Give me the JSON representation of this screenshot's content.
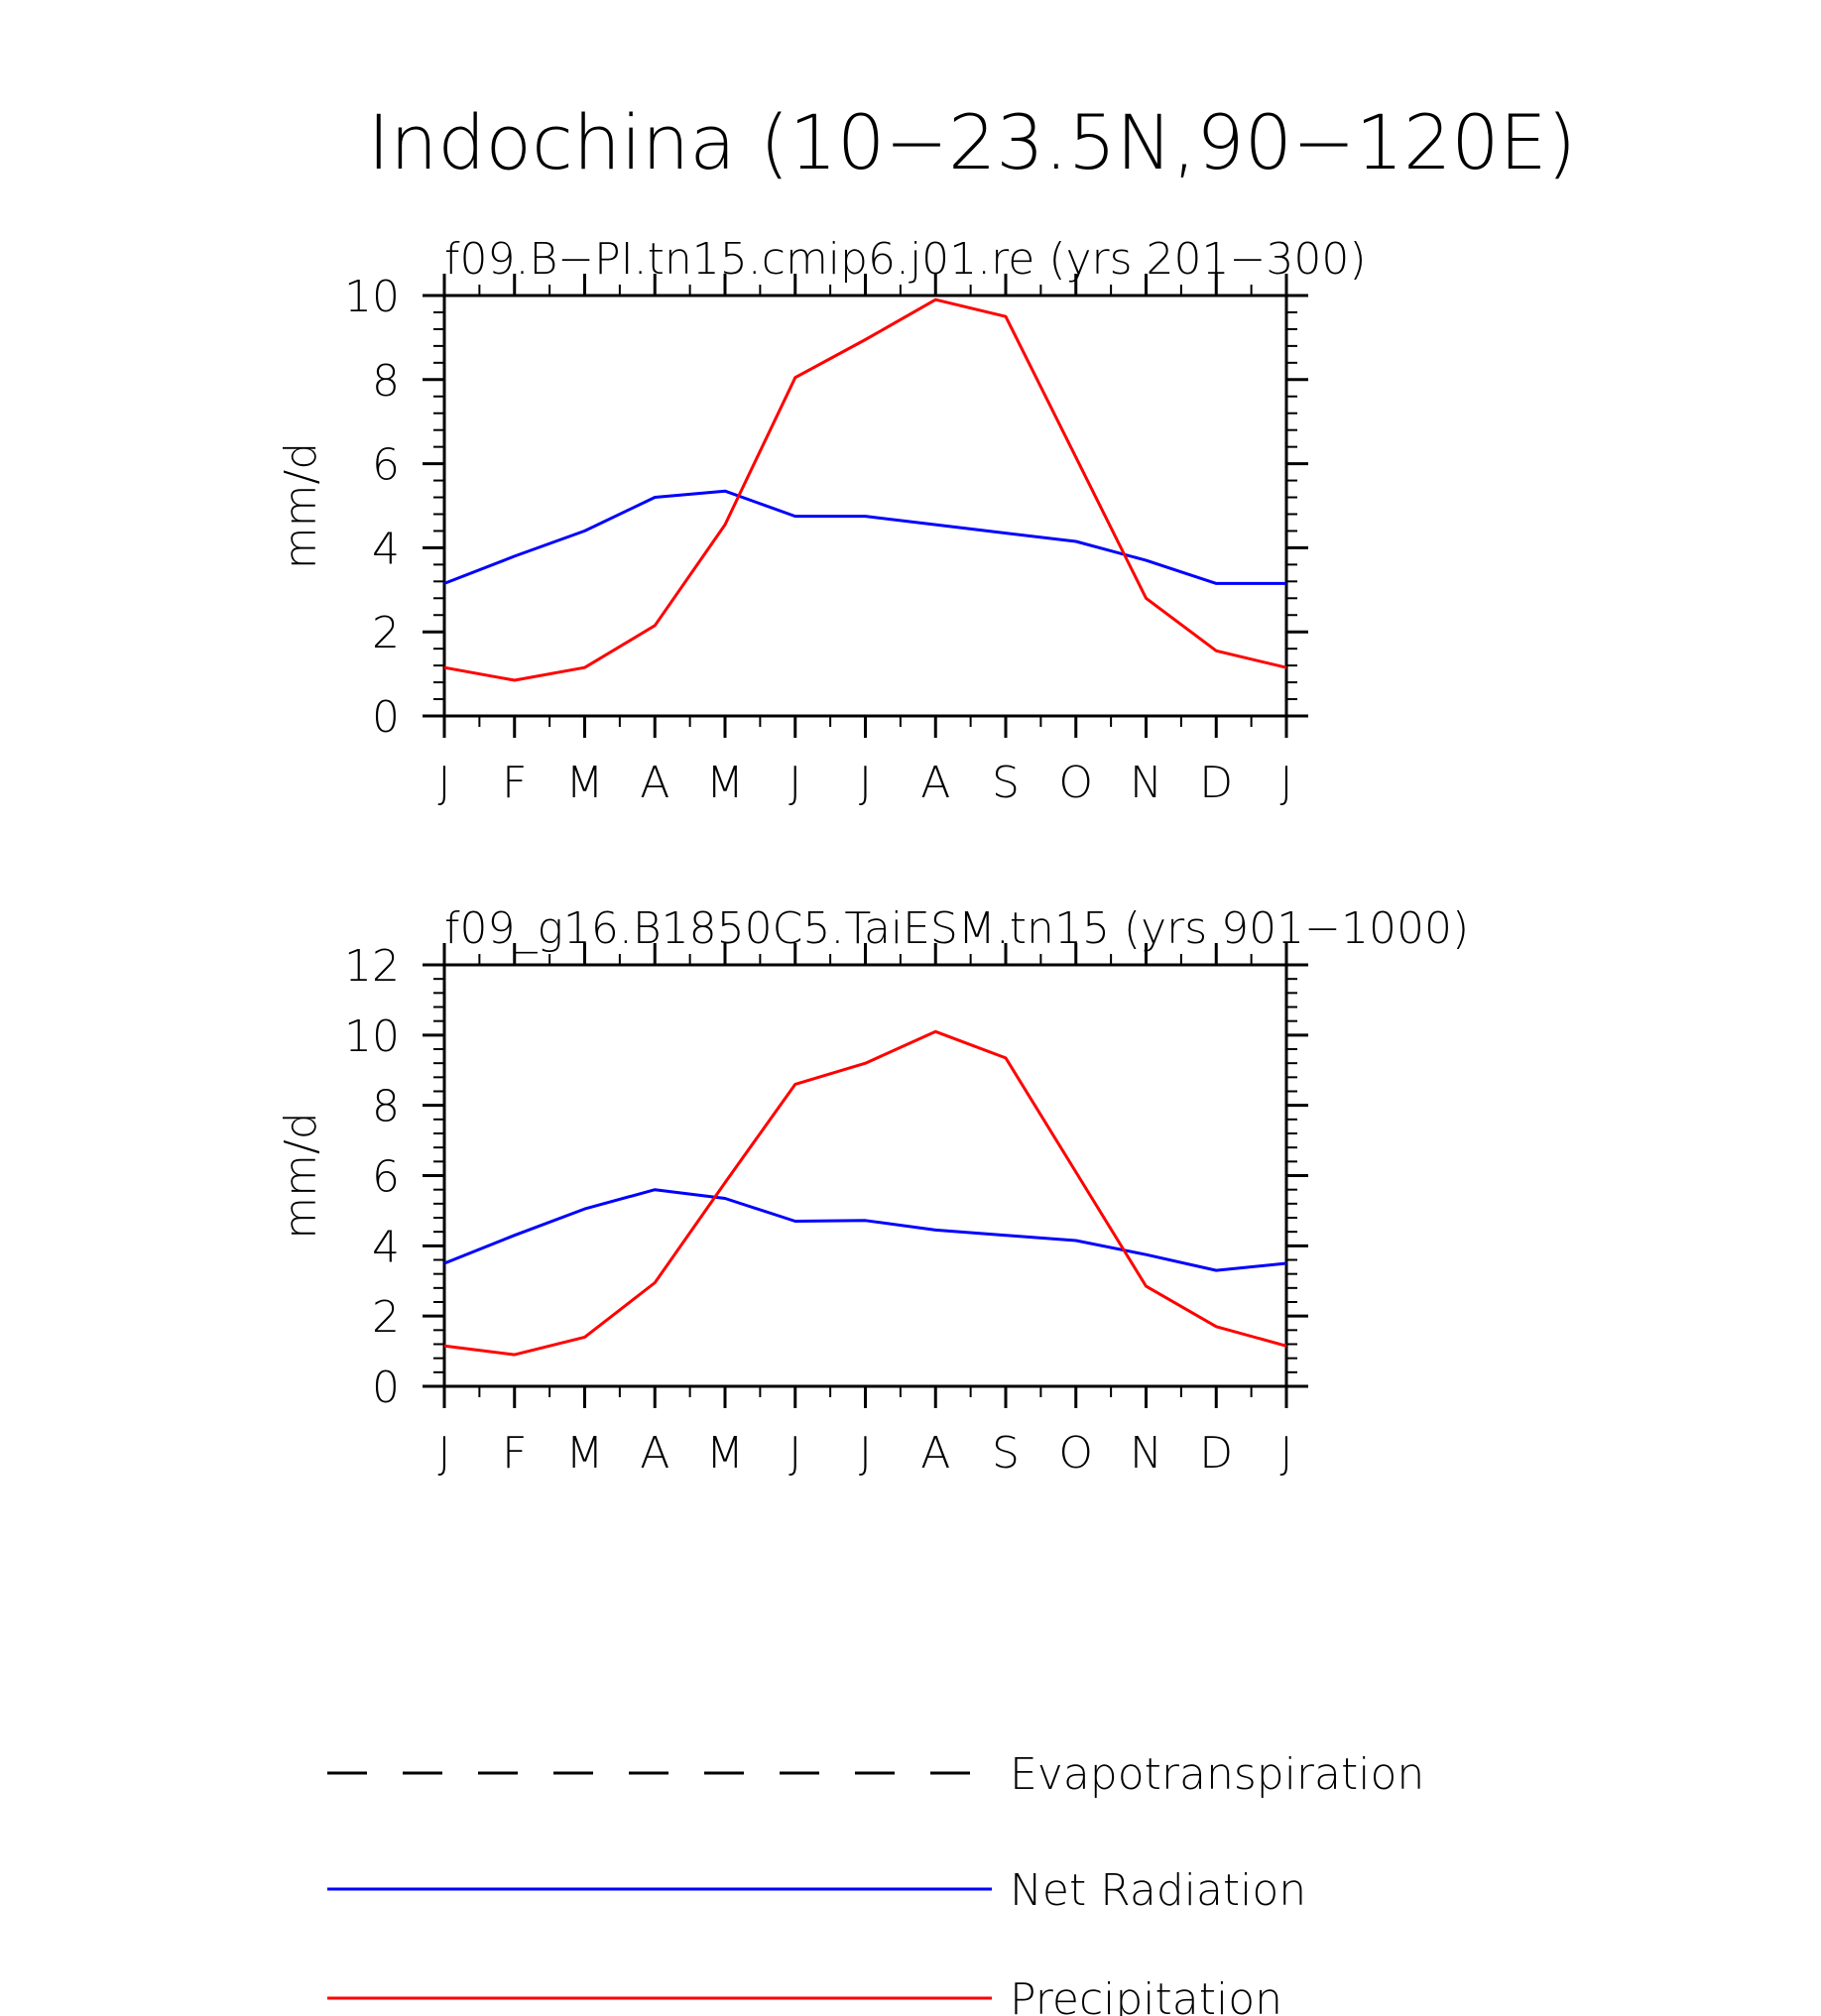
{
  "title": "Indochina (10−23.5N,90−120E)",
  "colors": {
    "precipitation": "#ff0000",
    "net_radiation": "#0000ff",
    "evapotranspiration": "#000000"
  },
  "legend": [
    {
      "name": "Evapotranspiration",
      "style": "dashed",
      "color": "#000000"
    },
    {
      "name": "Net Radiation",
      "style": "solid",
      "color": "#0000ff"
    },
    {
      "name": "Precipitation",
      "style": "solid",
      "color": "#ff0000"
    }
  ],
  "chart_data": [
    {
      "type": "line",
      "title": "f09.B−PI.tn15.cmip6.j01.re (yrs 201−300)",
      "xlabel": "",
      "ylabel": "mm/d",
      "categories": [
        "J",
        "F",
        "M",
        "A",
        "M",
        "J",
        "J",
        "A",
        "S",
        "O",
        "N",
        "D",
        "J"
      ],
      "ylim": [
        0,
        10
      ],
      "yticks": [
        0,
        2,
        4,
        6,
        8,
        10
      ],
      "grid": false,
      "series": [
        {
          "name": "Net Radiation",
          "color": "#0000ff",
          "values": [
            3.15,
            3.8,
            4.4,
            5.2,
            5.35,
            4.75,
            4.75,
            4.55,
            4.35,
            4.15,
            3.7,
            3.15,
            3.15
          ]
        },
        {
          "name": "Precipitation",
          "color": "#ff0000",
          "values": [
            1.15,
            0.85,
            1.15,
            2.15,
            4.55,
            8.05,
            8.95,
            9.9,
            9.5,
            6.15,
            2.8,
            1.55,
            1.15
          ]
        }
      ]
    },
    {
      "type": "line",
      "title": "f09_g16.B1850C5.TaiESM.tn15 (yrs 901−1000)",
      "xlabel": "",
      "ylabel": "mm/d",
      "categories": [
        "J",
        "F",
        "M",
        "A",
        "M",
        "J",
        "J",
        "A",
        "S",
        "O",
        "N",
        "D",
        "J"
      ],
      "ylim": [
        0,
        12
      ],
      "yticks": [
        0,
        2,
        4,
        6,
        8,
        10,
        12
      ],
      "grid": false,
      "series": [
        {
          "name": "Net Radiation",
          "color": "#0000ff",
          "values": [
            3.5,
            4.3,
            5.05,
            5.6,
            5.35,
            4.7,
            4.72,
            4.45,
            4.3,
            4.15,
            3.75,
            3.3,
            3.5
          ]
        },
        {
          "name": "Precipitation",
          "color": "#ff0000",
          "values": [
            1.15,
            0.9,
            1.4,
            2.95,
            5.8,
            8.6,
            9.2,
            10.1,
            9.35,
            6.1,
            2.85,
            1.7,
            1.15
          ]
        }
      ]
    }
  ]
}
